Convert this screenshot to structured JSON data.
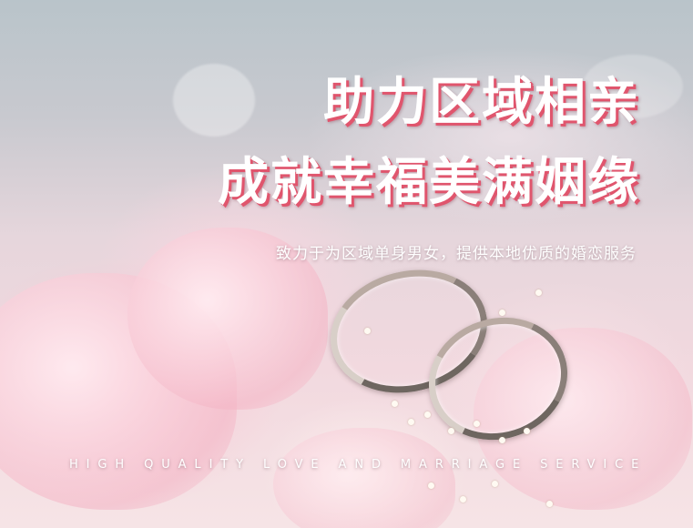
{
  "hero": {
    "headline_line1": "助力区域相亲",
    "headline_line2": "成就幸福美满姻缘",
    "subtitle": "致力于为区域单身男女，提供本地优质的婚恋服务",
    "tagline": "HIGH QUALITY LOVE AND MARRIAGE SERVICE"
  },
  "background": {
    "photo": "wedding-rings-on-pink-peony-flowers",
    "accent_color": "#e0556d",
    "text_color": "#ffffff"
  }
}
